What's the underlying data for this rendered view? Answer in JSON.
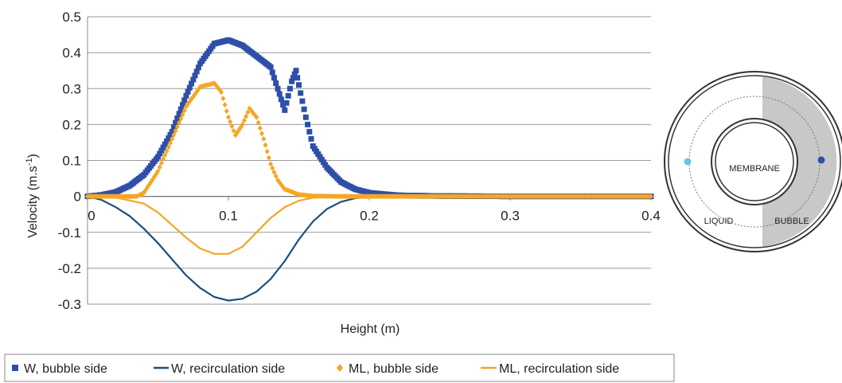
{
  "chart_data": {
    "type": "scatter",
    "xlabel": "Height (m)",
    "ylabel": "Velocity (m.s",
    "ylabel_sup": "-1",
    "ylabel_close": ")",
    "xlim": [
      0,
      0.4
    ],
    "ylim": [
      -0.3,
      0.5
    ],
    "x_ticks": [
      0,
      0.1,
      0.2,
      0.3,
      0.4
    ],
    "x_tick_labels": [
      "0",
      "0.1",
      "0.2",
      "0.3",
      "0.4"
    ],
    "y_ticks": [
      0.5,
      0.4,
      0.3,
      0.2,
      0.1,
      0,
      -0.1,
      -0.2,
      -0.3
    ],
    "y_tick_labels": [
      "0.5",
      "0.4",
      "0.3",
      "0.2",
      "0.1",
      "0",
      "-0.1",
      "-0.2",
      "-0.3"
    ],
    "grid": "horizontal",
    "legend_position": "bottom",
    "series": [
      {
        "name": "W, bubble side",
        "style": "square-markers",
        "color": "#2e4fa8",
        "points": [
          [
            0,
            0
          ],
          [
            0.01,
            0.004
          ],
          [
            0.02,
            0.012
          ],
          [
            0.03,
            0.03
          ],
          [
            0.04,
            0.06
          ],
          [
            0.05,
            0.11
          ],
          [
            0.06,
            0.18
          ],
          [
            0.07,
            0.28
          ],
          [
            0.08,
            0.37
          ],
          [
            0.09,
            0.425
          ],
          [
            0.1,
            0.435
          ],
          [
            0.11,
            0.42
          ],
          [
            0.12,
            0.39
          ],
          [
            0.13,
            0.36
          ],
          [
            0.135,
            0.3
          ],
          [
            0.14,
            0.24
          ],
          [
            0.145,
            0.32
          ],
          [
            0.148,
            0.35
          ],
          [
            0.15,
            0.31
          ],
          [
            0.155,
            0.22
          ],
          [
            0.16,
            0.14
          ],
          [
            0.17,
            0.08
          ],
          [
            0.18,
            0.04
          ],
          [
            0.19,
            0.02
          ],
          [
            0.2,
            0.01
          ],
          [
            0.22,
            0.003
          ],
          [
            0.25,
            0.001
          ],
          [
            0.3,
            0
          ],
          [
            0.35,
            0
          ],
          [
            0.4,
            0
          ]
        ]
      },
      {
        "name": "W, recirculation side",
        "style": "line",
        "color": "#1f4e79",
        "points": [
          [
            0,
            0
          ],
          [
            0.01,
            -0.01
          ],
          [
            0.02,
            -0.03
          ],
          [
            0.03,
            -0.055
          ],
          [
            0.04,
            -0.09
          ],
          [
            0.05,
            -0.13
          ],
          [
            0.06,
            -0.175
          ],
          [
            0.07,
            -0.22
          ],
          [
            0.08,
            -0.255
          ],
          [
            0.09,
            -0.28
          ],
          [
            0.1,
            -0.29
          ],
          [
            0.11,
            -0.285
          ],
          [
            0.12,
            -0.265
          ],
          [
            0.13,
            -0.23
          ],
          [
            0.14,
            -0.18
          ],
          [
            0.15,
            -0.12
          ],
          [
            0.16,
            -0.07
          ],
          [
            0.17,
            -0.035
          ],
          [
            0.18,
            -0.015
          ],
          [
            0.19,
            -0.005
          ],
          [
            0.2,
            0
          ]
        ]
      },
      {
        "name": "ML, bubble side",
        "style": "diamond-markers",
        "color": "#f5a623",
        "points": [
          [
            0,
            0
          ],
          [
            0.02,
            0
          ],
          [
            0.035,
            0
          ],
          [
            0.04,
            0.01
          ],
          [
            0.05,
            0.07
          ],
          [
            0.06,
            0.16
          ],
          [
            0.07,
            0.25
          ],
          [
            0.08,
            0.305
          ],
          [
            0.09,
            0.315
          ],
          [
            0.095,
            0.29
          ],
          [
            0.1,
            0.22
          ],
          [
            0.105,
            0.17
          ],
          [
            0.11,
            0.2
          ],
          [
            0.115,
            0.245
          ],
          [
            0.12,
            0.22
          ],
          [
            0.125,
            0.16
          ],
          [
            0.13,
            0.09
          ],
          [
            0.135,
            0.045
          ],
          [
            0.14,
            0.02
          ],
          [
            0.15,
            0.005
          ],
          [
            0.16,
            0.001
          ],
          [
            0.18,
            0
          ],
          [
            0.2,
            0
          ],
          [
            0.25,
            0
          ],
          [
            0.3,
            0
          ],
          [
            0.35,
            0
          ],
          [
            0.4,
            0
          ]
        ]
      },
      {
        "name": "ML, recirculation side",
        "style": "line",
        "color": "#f5a623",
        "points": [
          [
            0,
            0
          ],
          [
            0.02,
            -0.003
          ],
          [
            0.04,
            -0.02
          ],
          [
            0.05,
            -0.045
          ],
          [
            0.06,
            -0.08
          ],
          [
            0.07,
            -0.115
          ],
          [
            0.08,
            -0.145
          ],
          [
            0.09,
            -0.16
          ],
          [
            0.1,
            -0.16
          ],
          [
            0.11,
            -0.14
          ],
          [
            0.12,
            -0.1
          ],
          [
            0.13,
            -0.06
          ],
          [
            0.14,
            -0.03
          ],
          [
            0.15,
            -0.012
          ],
          [
            0.16,
            -0.004
          ],
          [
            0.17,
            0
          ]
        ]
      }
    ]
  },
  "diagram": {
    "labels": {
      "membrane": "MEMBRANE",
      "liquid": "LIQUID",
      "bubble": "BUBBLE"
    },
    "colors": {
      "bubble_region": "#c8c8c8",
      "liquid_marker": "#5bc8e8",
      "bubble_marker": "#2e4fa8"
    }
  }
}
